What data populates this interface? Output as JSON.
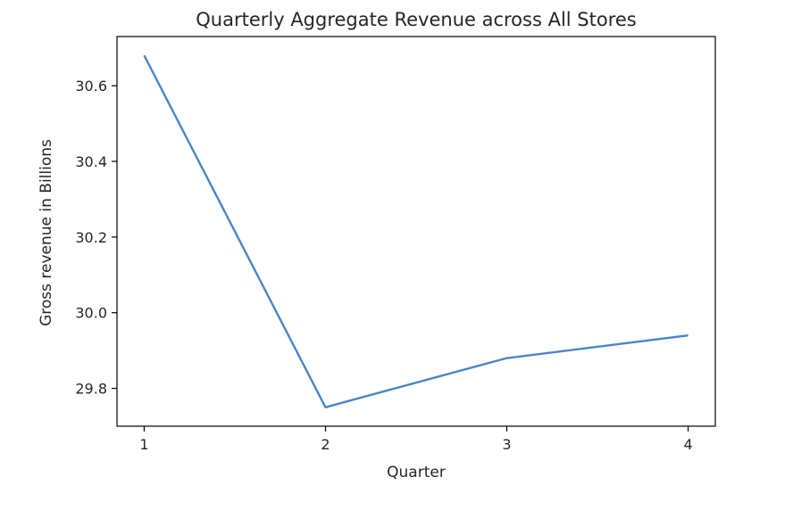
{
  "chart_data": {
    "type": "line",
    "title": "Quarterly Aggregate Revenue across All Stores",
    "xlabel": "Quarter",
    "ylabel": "Gross revenue in Billions",
    "x": [
      1,
      2,
      3,
      4
    ],
    "series": [
      {
        "values": [
          30.68,
          29.75,
          29.88,
          29.94
        ]
      }
    ],
    "xlim": [
      0.85,
      4.15
    ],
    "ylim": [
      29.7,
      30.73
    ],
    "xticks": [
      1,
      2,
      3,
      4
    ],
    "xtick_labels": [
      "1",
      "2",
      "3",
      "4"
    ],
    "yticks": [
      29.8,
      30.0,
      30.2,
      30.4,
      30.6
    ],
    "ytick_labels": [
      "29.8",
      "30.0",
      "30.2",
      "30.4",
      "30.6"
    ],
    "grid": false,
    "line_color": "#4a86c5"
  }
}
